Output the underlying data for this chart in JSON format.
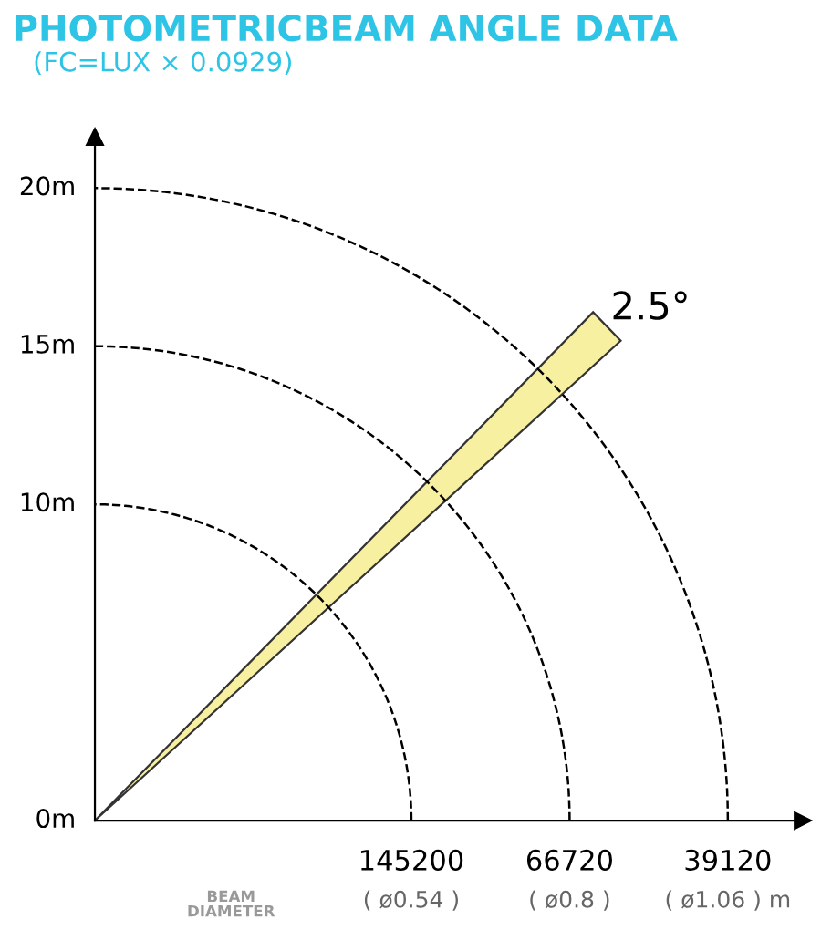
{
  "chart_data": {
    "type": "other",
    "title": "PHOTOMETRICBEAM ANGLE DATA",
    "subtitle": "(FC=LUX × 0.0929)",
    "values": [
      145200,
      66720,
      39120
    ],
    "data_labels": true,
    "annotations": [
      "0m",
      "10m",
      "15m",
      "20m",
      "2.5°",
      "BEAM\nDIAMETER",
      "( ø0.54 )",
      "( ø0.8 )",
      "( ø1.06 ) m"
    ]
  }
}
